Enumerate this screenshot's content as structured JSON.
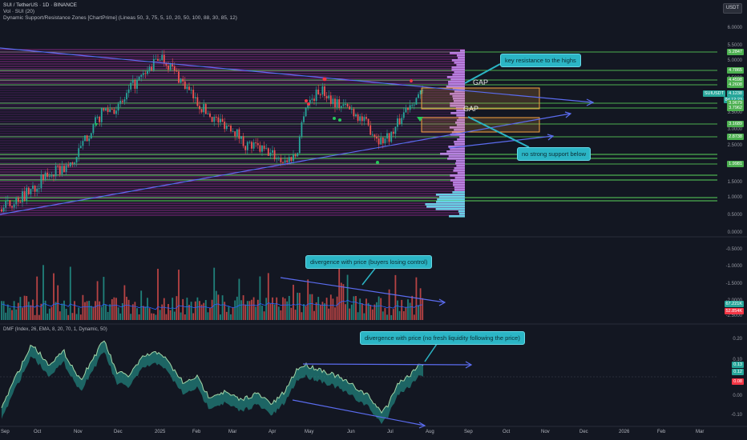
{
  "header": {
    "symbol_line": "SUI / TetherUS · 1D · BINANCE",
    "vol_line": "Vol · SUI (20)",
    "indicator_line": "Dynamic Support/Resistance Zones [ChartPrime] (Lineas 50, 3, 75, 5, 10, 20, 50, 100, 88, 30, 85, 12)",
    "currency_button": "USDT"
  },
  "price_axis": {
    "labels": [
      "6.0000",
      "5.5000",
      "5.0000",
      "4.5000",
      "4.0000",
      "3.5000",
      "3.0000",
      "2.5000",
      "2.0000",
      "1.5000",
      "1.0000",
      "0.5000",
      "0.0000",
      "-0.5000",
      "-1.0000",
      "-1.5000",
      "-2.0000",
      "-2.5000"
    ],
    "level_tags": [
      {
        "text": "5.2847",
        "color": "#4caf50"
      },
      {
        "text": "4.7865",
        "color": "#4caf50"
      },
      {
        "text": "4.4598",
        "color": "#4caf50"
      },
      {
        "text": "4.2608",
        "color": "#4caf50"
      },
      {
        "text": "3.9679",
        "color": "#4caf50"
      },
      {
        "text": "3.7962",
        "color": "#4caf50"
      },
      {
        "text": "3.1689",
        "color": "#4caf50"
      },
      {
        "text": "2.8738",
        "color": "#4caf50"
      },
      {
        "text": "1.9981",
        "color": "#4caf50"
      }
    ],
    "last_price_tag": {
      "symbol": "SUIUSDT",
      "price": "4.1238",
      "sub": "8d 12:23",
      "color": "#26a69a"
    }
  },
  "volume_axis": {
    "tag1": "67.221K",
    "tag2": "52.854K"
  },
  "dmf_pane": {
    "title": "DMF (Index, 26, EMA, 8, 20, 70, 1, Dynamic, 50)",
    "axis_labels": [
      "0.20",
      "0.10",
      "0.00",
      "-0.10"
    ],
    "tags": [
      {
        "text": "0.13",
        "color": "#26a69a"
      },
      {
        "text": "0.12",
        "color": "#26a69a"
      },
      {
        "text": "0.08",
        "color": "#f23645"
      }
    ]
  },
  "annotations": {
    "callout_resistance": "key resistance to the highs",
    "callout_support": "no strong support below",
    "callout_volume": "divergence with price (buyers losing control)",
    "callout_dmf": "divergence with price (no fresh liquidity following the price)",
    "gap_1": "GAP",
    "gap_2": "GAP"
  },
  "time_axis": [
    "Sep",
    "Oct",
    "Nov",
    "Dec",
    "2025",
    "Feb",
    "Mar",
    "Apr",
    "May",
    "Jun",
    "Jul",
    "Aug",
    "Sep",
    "Oct",
    "Nov",
    "Dec",
    "2026",
    "Feb",
    "Mar"
  ],
  "colors": {
    "background": "#131722",
    "up": "#26a69a",
    "down": "#ef5350",
    "callout": "#2bb5c5",
    "gap_box": "#f7a440",
    "level": "#4caf50"
  }
}
